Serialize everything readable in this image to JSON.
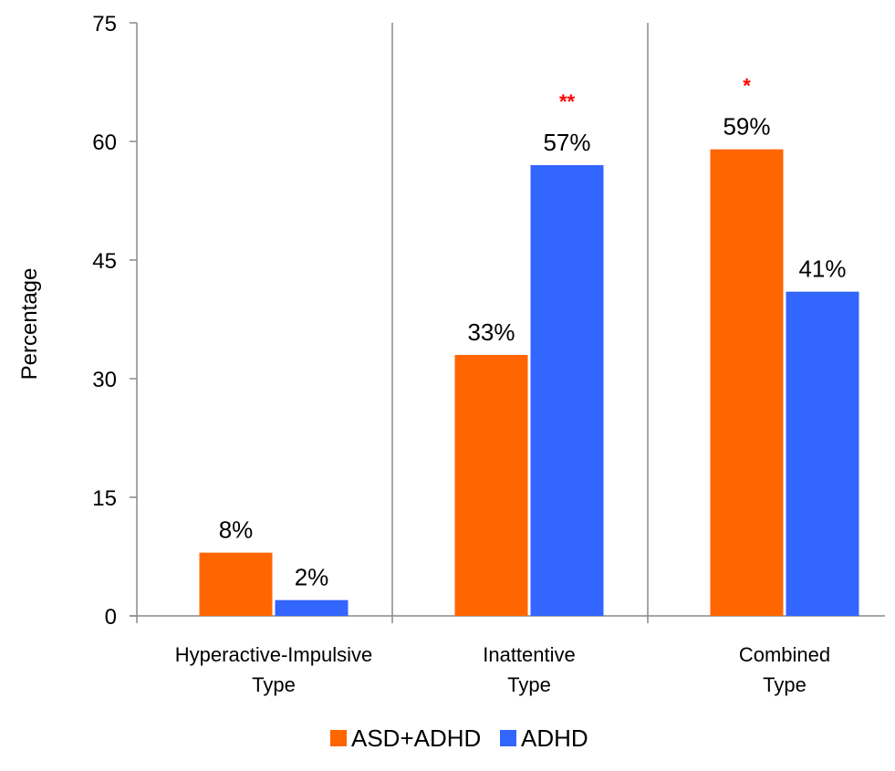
{
  "chart_data": {
    "type": "bar",
    "title": "",
    "ylabel": "Percentage",
    "xlabel": "",
    "ylim": [
      0,
      75
    ],
    "yticks": [
      0,
      15,
      30,
      45,
      60,
      75
    ],
    "grid": false,
    "legend_position": "bottom",
    "categories": [
      [
        "Hyperactive-Impulsive",
        "Type"
      ],
      [
        "Inattentive",
        "Type"
      ],
      [
        "Combined",
        "Type"
      ]
    ],
    "series": [
      {
        "name": "ASD+ADHD",
        "color": "#ff6600",
        "values": [
          8,
          33,
          59
        ],
        "labels": [
          "8%",
          "33%",
          "59%"
        ]
      },
      {
        "name": "ADHD",
        "color": "#3366ff",
        "values": [
          2,
          57,
          41
        ],
        "labels": [
          "2%",
          "57%",
          "41%"
        ]
      }
    ],
    "annotations": [
      {
        "category_index": 1,
        "series_index": 1,
        "text": "**",
        "color": "#ff0000"
      },
      {
        "category_index": 2,
        "series_index": 0,
        "text": "*",
        "color": "#ff0000"
      }
    ]
  }
}
